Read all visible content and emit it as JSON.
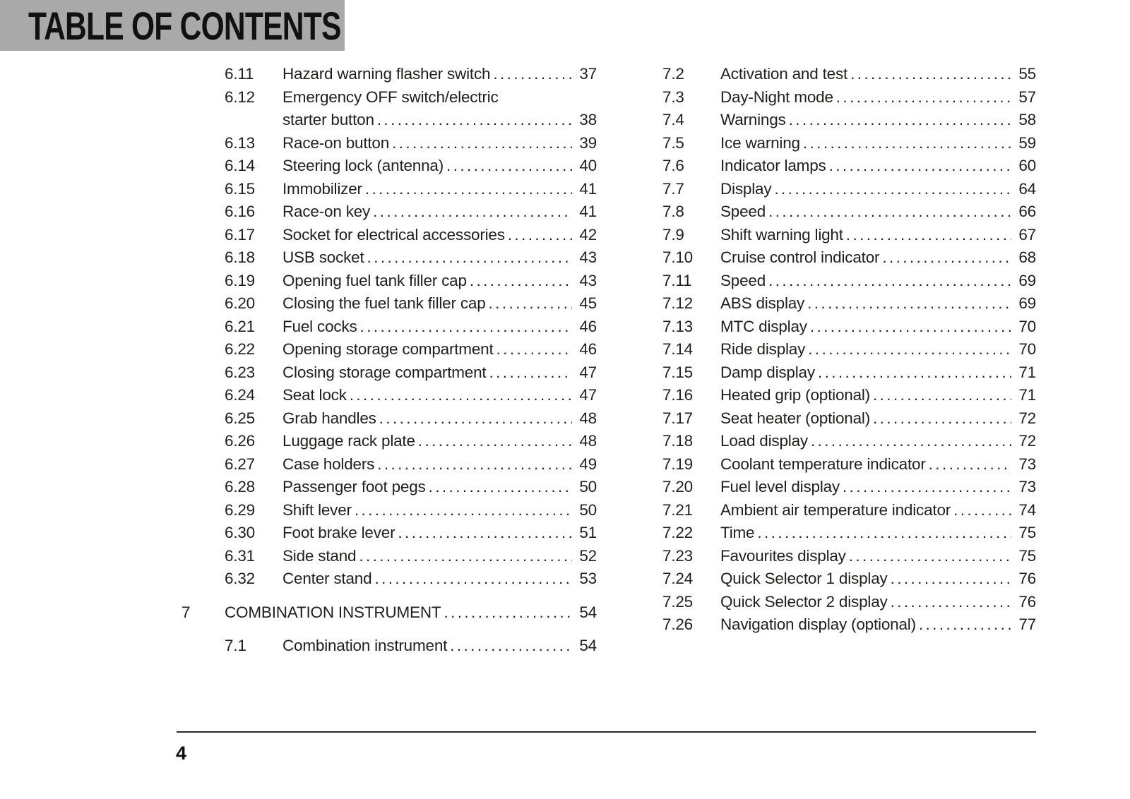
{
  "banner": {
    "title": "TABLE OF CONTENTS",
    "bg_color": "#a9a9a9",
    "text_color": "#111111"
  },
  "footer": {
    "page_number": "4"
  },
  "colors": {
    "body_text": "#1f1f1e",
    "rule": "#2b2b2b",
    "page_bg": "#ffffff"
  },
  "toc": {
    "left_column": [
      {
        "level": "section",
        "num": "6.11",
        "title": "Hazard warning flasher switch",
        "page": "37"
      },
      {
        "level": "section",
        "num": "6.12",
        "title": "Emergency OFF switch/electric",
        "title2": "starter button",
        "page": "38"
      },
      {
        "level": "section",
        "num": "6.13",
        "title": "Race-on button",
        "page": "39"
      },
      {
        "level": "section",
        "num": "6.14",
        "title": "Steering lock (antenna)",
        "page": "40"
      },
      {
        "level": "section",
        "num": "6.15",
        "title": "Immobilizer",
        "page": "41"
      },
      {
        "level": "section",
        "num": "6.16",
        "title": "Race-on key",
        "page": "41"
      },
      {
        "level": "section",
        "num": "6.17",
        "title": "Socket for electrical accessories",
        "page": "42"
      },
      {
        "level": "section",
        "num": "6.18",
        "title": "USB socket",
        "page": "43"
      },
      {
        "level": "section",
        "num": "6.19",
        "title": "Opening fuel tank filler cap",
        "page": "43"
      },
      {
        "level": "section",
        "num": "6.20",
        "title": "Closing the fuel tank filler cap",
        "page": "45"
      },
      {
        "level": "section",
        "num": "6.21",
        "title": "Fuel cocks",
        "page": "46"
      },
      {
        "level": "section",
        "num": "6.22",
        "title": "Opening storage compartment",
        "page": "46"
      },
      {
        "level": "section",
        "num": "6.23",
        "title": "Closing storage compartment",
        "page": "47"
      },
      {
        "level": "section",
        "num": "6.24",
        "title": "Seat lock",
        "page": "47"
      },
      {
        "level": "section",
        "num": "6.25",
        "title": "Grab handles",
        "page": "48"
      },
      {
        "level": "section",
        "num": "6.26",
        "title": "Luggage rack plate",
        "page": "48"
      },
      {
        "level": "section",
        "num": "6.27",
        "title": "Case holders",
        "page": "49"
      },
      {
        "level": "section",
        "num": "6.28",
        "title": "Passenger foot pegs",
        "page": "50"
      },
      {
        "level": "section",
        "num": "6.29",
        "title": "Shift lever",
        "page": "50"
      },
      {
        "level": "section",
        "num": "6.30",
        "title": "Foot brake lever",
        "page": "51"
      },
      {
        "level": "section",
        "num": "6.31",
        "title": "Side stand",
        "page": "52"
      },
      {
        "level": "section",
        "num": "6.32",
        "title": "Center stand",
        "page": "53"
      },
      {
        "level": "chapter",
        "num": "7",
        "title": "COMBINATION INSTRUMENT",
        "page": "54"
      },
      {
        "level": "section",
        "num": "7.1",
        "title": "Combination instrument",
        "page": "54"
      }
    ],
    "right_column": [
      {
        "level": "section",
        "num": "7.2",
        "title": "Activation and test",
        "page": "55"
      },
      {
        "level": "section",
        "num": "7.3",
        "title": "Day-Night mode",
        "page": "57"
      },
      {
        "level": "section",
        "num": "7.4",
        "title": "Warnings",
        "page": "58"
      },
      {
        "level": "section",
        "num": "7.5",
        "title": "Ice warning",
        "page": "59"
      },
      {
        "level": "section",
        "num": "7.6",
        "title": "Indicator lamps",
        "page": "60"
      },
      {
        "level": "section",
        "num": "7.7",
        "title": "Display",
        "page": "64"
      },
      {
        "level": "section",
        "num": "7.8",
        "title": "Speed",
        "page": "66"
      },
      {
        "level": "section",
        "num": "7.9",
        "title": "Shift warning light",
        "page": "67"
      },
      {
        "level": "section",
        "num": "7.10",
        "title": "Cruise control indicator",
        "page": "68"
      },
      {
        "level": "section",
        "num": "7.11",
        "title": "Speed",
        "page": "69"
      },
      {
        "level": "section",
        "num": "7.12",
        "title": "ABS display",
        "page": "69"
      },
      {
        "level": "section",
        "num": "7.13",
        "title": "MTC display",
        "page": "70"
      },
      {
        "level": "section",
        "num": "7.14",
        "title": "Ride display",
        "page": "70"
      },
      {
        "level": "section",
        "num": "7.15",
        "title": "Damp display",
        "page": "71"
      },
      {
        "level": "section",
        "num": "7.16",
        "title": "Heated grip (optional)",
        "page": "71"
      },
      {
        "level": "section",
        "num": "7.17",
        "title": "Seat heater (optional)",
        "page": "72"
      },
      {
        "level": "section",
        "num": "7.18",
        "title": "Load display",
        "page": "72"
      },
      {
        "level": "section",
        "num": "7.19",
        "title": "Coolant temperature indicator",
        "page": "73"
      },
      {
        "level": "section",
        "num": "7.20",
        "title": "Fuel level display",
        "page": "73"
      },
      {
        "level": "section",
        "num": "7.21",
        "title": "Ambient air temperature indicator",
        "page": "74"
      },
      {
        "level": "section",
        "num": "7.22",
        "title": "Time",
        "page": "75"
      },
      {
        "level": "section",
        "num": "7.23",
        "title": "Favourites display",
        "page": "75"
      },
      {
        "level": "section",
        "num": "7.24",
        "title": "Quick Selector 1 display",
        "page": "76"
      },
      {
        "level": "section",
        "num": "7.25",
        "title": "Quick Selector 2 display",
        "page": "76"
      },
      {
        "level": "section",
        "num": "7.26",
        "title": "Navigation display (optional)",
        "page": "77"
      }
    ]
  }
}
